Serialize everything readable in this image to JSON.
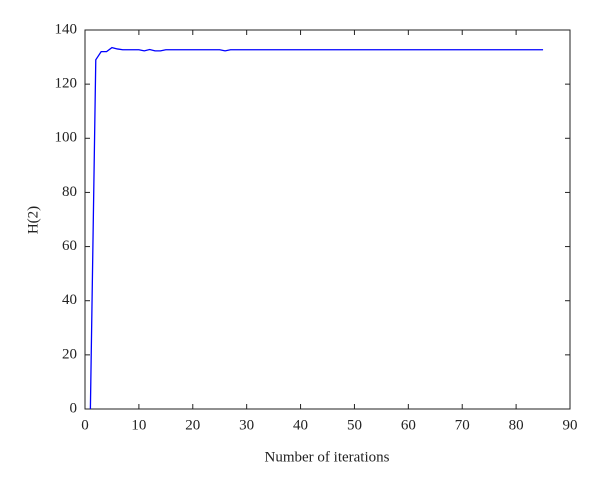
{
  "chart_data": {
    "type": "line",
    "x_label": "Number of iterations",
    "y_label": "H(2)",
    "x": [
      1,
      2,
      3,
      4,
      5,
      6,
      7,
      8,
      9,
      10,
      11,
      12,
      13,
      14,
      15,
      20,
      25,
      26,
      27,
      30,
      40,
      50,
      60,
      70,
      80,
      85
    ],
    "series": [
      {
        "color": "#0000ff",
        "values": [
          0,
          129,
          132,
          132,
          133.5,
          133,
          132.7,
          132.7,
          132.7,
          132.7,
          132.3,
          132.8,
          132.3,
          132.3,
          132.7,
          132.7,
          132.7,
          132.3,
          132.7,
          132.7,
          132.7,
          132.7,
          132.7,
          132.7,
          132.7,
          132.7
        ]
      }
    ],
    "xlim": [
      0,
      90
    ],
    "xticks": [
      0,
      10,
      20,
      30,
      40,
      50,
      60,
      70,
      80,
      90
    ],
    "ylim": [
      0,
      140
    ],
    "yticks": [
      0,
      20,
      40,
      60,
      80,
      100,
      120,
      140
    ]
  }
}
